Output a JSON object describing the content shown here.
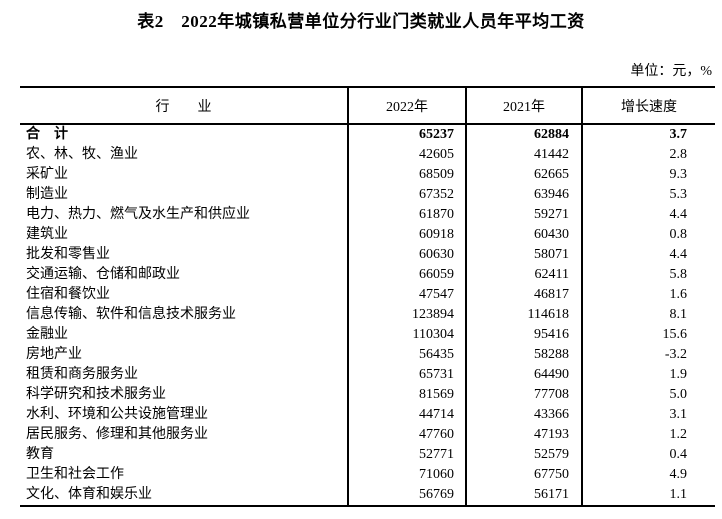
{
  "page": {
    "title": "表2　2022年城镇私营单位分行业门类就业人员年平均工资",
    "unit_note": "单位：元，%"
  },
  "table": {
    "columns": [
      "行　　业",
      "2022年",
      "2021年",
      "增长速度"
    ],
    "rows": [
      {
        "industry": "合　计",
        "y2022": "65237",
        "y2021": "62884",
        "growth": "3.7",
        "emphasis": true
      },
      {
        "industry": "农、林、牧、渔业",
        "y2022": "42605",
        "y2021": "41442",
        "growth": "2.8"
      },
      {
        "industry": "采矿业",
        "y2022": "68509",
        "y2021": "62665",
        "growth": "9.3"
      },
      {
        "industry": "制造业",
        "y2022": "67352",
        "y2021": "63946",
        "growth": "5.3"
      },
      {
        "industry": "电力、热力、燃气及水生产和供应业",
        "y2022": "61870",
        "y2021": "59271",
        "growth": "4.4"
      },
      {
        "industry": "建筑业",
        "y2022": "60918",
        "y2021": "60430",
        "growth": "0.8"
      },
      {
        "industry": "批发和零售业",
        "y2022": "60630",
        "y2021": "58071",
        "growth": "4.4"
      },
      {
        "industry": "交通运输、仓储和邮政业",
        "y2022": "66059",
        "y2021": "62411",
        "growth": "5.8"
      },
      {
        "industry": "住宿和餐饮业",
        "y2022": "47547",
        "y2021": "46817",
        "growth": "1.6"
      },
      {
        "industry": "信息传输、软件和信息技术服务业",
        "y2022": "123894",
        "y2021": "114618",
        "growth": "8.1"
      },
      {
        "industry": "金融业",
        "y2022": "110304",
        "y2021": "95416",
        "growth": "15.6"
      },
      {
        "industry": "房地产业",
        "y2022": "56435",
        "y2021": "58288",
        "growth": "-3.2"
      },
      {
        "industry": "租赁和商务服务业",
        "y2022": "65731",
        "y2021": "64490",
        "growth": "1.9"
      },
      {
        "industry": "科学研究和技术服务业",
        "y2022": "81569",
        "y2021": "77708",
        "growth": "5.0"
      },
      {
        "industry": "水利、环境和公共设施管理业",
        "y2022": "44714",
        "y2021": "43366",
        "growth": "3.1"
      },
      {
        "industry": "居民服务、修理和其他服务业",
        "y2022": "47760",
        "y2021": "47193",
        "growth": "1.2"
      },
      {
        "industry": "教育",
        "y2022": "52771",
        "y2021": "52579",
        "growth": "0.4"
      },
      {
        "industry": "卫生和社会工作",
        "y2022": "71060",
        "y2021": "67750",
        "growth": "4.9"
      },
      {
        "industry": "文化、体育和娱乐业",
        "y2022": "56769",
        "y2021": "56171",
        "growth": "1.1"
      }
    ]
  }
}
